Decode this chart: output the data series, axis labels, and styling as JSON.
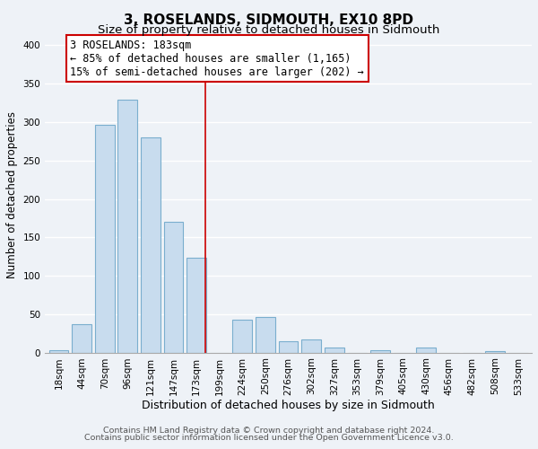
{
  "title": "3, ROSELANDS, SIDMOUTH, EX10 8PD",
  "subtitle": "Size of property relative to detached houses in Sidmouth",
  "xlabel": "Distribution of detached houses by size in Sidmouth",
  "ylabel": "Number of detached properties",
  "bar_labels": [
    "18sqm",
    "44sqm",
    "70sqm",
    "96sqm",
    "121sqm",
    "147sqm",
    "173sqm",
    "199sqm",
    "224sqm",
    "250sqm",
    "276sqm",
    "302sqm",
    "327sqm",
    "353sqm",
    "379sqm",
    "405sqm",
    "430sqm",
    "456sqm",
    "482sqm",
    "508sqm",
    "533sqm"
  ],
  "bar_heights": [
    3,
    37,
    297,
    329,
    280,
    170,
    123,
    0,
    43,
    46,
    15,
    17,
    6,
    0,
    3,
    0,
    6,
    0,
    0,
    2,
    0
  ],
  "bar_color": "#c8dcee",
  "bar_edge_color": "#7aaece",
  "annotation_line_label": "3 ROSELANDS: 183sqm",
  "annotation_text_line2": "← 85% of detached houses are smaller (1,165)",
  "annotation_text_line3": "15% of semi-detached houses are larger (202) →",
  "annotation_box_facecolor": "#ffffff",
  "annotation_box_edgecolor": "#cc0000",
  "vline_color": "#cc0000",
  "footer_line1": "Contains HM Land Registry data © Crown copyright and database right 2024.",
  "footer_line2": "Contains public sector information licensed under the Open Government Licence v3.0.",
  "background_color": "#eef2f7",
  "plot_bg_color": "#eef2f7",
  "ylim": [
    0,
    410
  ],
  "yticks": [
    0,
    50,
    100,
    150,
    200,
    250,
    300,
    350,
    400
  ],
  "grid_color": "#ffffff",
  "title_fontsize": 11,
  "subtitle_fontsize": 9.5,
  "xlabel_fontsize": 9,
  "ylabel_fontsize": 8.5,
  "tick_fontsize": 7.5,
  "annotation_fontsize": 8.5,
  "footer_fontsize": 6.8
}
